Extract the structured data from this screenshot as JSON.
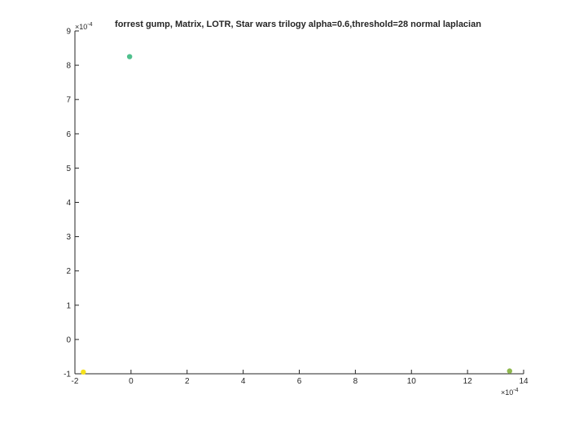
{
  "chart_data": {
    "type": "scatter",
    "title": "forrest gump, Matrix, LOTR, Star wars trilogy alpha=0.6,threshold=28 normal laplacian",
    "xlabel": "",
    "ylabel": "",
    "xlim": [
      -2,
      14
    ],
    "ylim": [
      -1,
      9
    ],
    "xticks": [
      "-2",
      "0",
      "2",
      "4",
      "6",
      "8",
      "10",
      "12",
      "14"
    ],
    "yticks": [
      "-1",
      "0",
      "1",
      "2",
      "3",
      "4",
      "5",
      "6",
      "7",
      "8",
      "9"
    ],
    "x_multiplier_base": "×10",
    "x_multiplier_exp": "-4",
    "y_multiplier_base": "×10",
    "y_multiplier_exp": "-4",
    "grid": false,
    "points": [
      {
        "x": -0.05,
        "y": 8.25,
        "color": "#4fc08d"
      },
      {
        "x": 13.5,
        "y": -0.92,
        "color": "#8fb84f"
      },
      {
        "x": -1.7,
        "y": -0.95,
        "color": "#f5e11c"
      }
    ]
  }
}
